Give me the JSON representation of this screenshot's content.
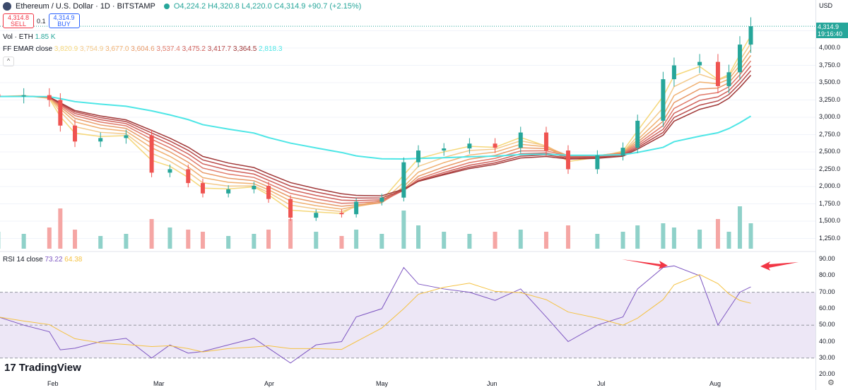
{
  "header": {
    "symbol": "Ethereum / U.S. Dollar · 1D · BITSTAMP",
    "open": "O4,224.2",
    "high": "H4,320.8",
    "low": "L4,220.0",
    "close": "C4,314.9",
    "change": "+90.7 (+2.15%)"
  },
  "trade": {
    "sell_price": "4,314.8",
    "sell_label": "SELL",
    "spread": "0.1",
    "buy_price": "4,314.9",
    "buy_label": "BUY"
  },
  "volume_legend": {
    "label": "Vol · ETH",
    "value": "1.85 K"
  },
  "ema_legend": {
    "label": "FF EMAR close",
    "values": [
      "3,820.9",
      "3,754.9",
      "3,677.0",
      "3,604.6",
      "3,537.4",
      "3,475.2",
      "3,417.7",
      "3,364.5",
      "2,818.3"
    ],
    "colors": [
      "#f5d77a",
      "#f3c98a",
      "#f0b070",
      "#e89a68",
      "#e07a6a",
      "#d0605a",
      "#b84a4a",
      "#a03838",
      "#4ee6e6"
    ]
  },
  "rsi_legend": {
    "label": "RSI 14 close",
    "value": "73.22",
    "ma": "64.38"
  },
  "axis": {
    "currency": "USD",
    "last_price": "4,314.9",
    "countdown": "19:16:40",
    "price_ticks": [
      "4,000.0",
      "3,750.0",
      "3,500.0",
      "3,250.0",
      "3,000.0",
      "2,750.0",
      "2,500.0",
      "2,250.0",
      "2,000.0",
      "1,750.0",
      "1,500.0",
      "1,250.0"
    ],
    "rsi_ticks": [
      "90.00",
      "80.00",
      "70.00",
      "60.00",
      "50.00",
      "40.00",
      "30.00",
      "20.00"
    ]
  },
  "brand": "TradingView",
  "colors": {
    "up": "#26a69a",
    "down": "#ef5350",
    "rsi": "#7e57c2",
    "rsi_ma": "#f5c242",
    "rsi_band": "#ede7f6",
    "arrow": "#f23645"
  },
  "chart_data": {
    "type": "candlestick",
    "x_ticks": [
      "Feb",
      "Mar",
      "Apr",
      "May",
      "Jun",
      "Jul",
      "Aug"
    ],
    "dates": [
      "2025-01-17",
      "2025-01-24",
      "2025-01-31",
      "2025-02-03",
      "2025-02-07",
      "2025-02-14",
      "2025-02-21",
      "2025-02-28",
      "2025-03-05",
      "2025-03-10",
      "2025-03-14",
      "2025-03-21",
      "2025-03-28",
      "2025-04-01",
      "2025-04-07",
      "2025-04-14",
      "2025-04-21",
      "2025-04-25",
      "2025-05-02",
      "2025-05-08",
      "2025-05-12",
      "2025-05-19",
      "2025-05-26",
      "2025-06-02",
      "2025-06-09",
      "2025-06-16",
      "2025-06-22",
      "2025-06-30",
      "2025-07-07",
      "2025-07-11",
      "2025-07-18",
      "2025-07-21",
      "2025-07-28",
      "2025-08-02",
      "2025-08-05",
      "2025-08-08",
      "2025-08-11"
    ],
    "close": [
      3300,
      3320,
      3250,
      2880,
      2650,
      2700,
      2740,
      2200,
      2250,
      2050,
      1900,
      1960,
      2010,
      1820,
      1550,
      1620,
      1600,
      1780,
      1840,
      2350,
      2520,
      2550,
      2620,
      2560,
      2780,
      2520,
      2250,
      2450,
      2560,
      2950,
      3550,
      3750,
      3800,
      3450,
      3650,
      4050,
      4314.9
    ],
    "volume": [
      40,
      35,
      50,
      95,
      45,
      30,
      35,
      70,
      50,
      45,
      40,
      30,
      35,
      45,
      70,
      40,
      30,
      45,
      35,
      90,
      55,
      40,
      35,
      40,
      45,
      40,
      55,
      35,
      40,
      55,
      60,
      50,
      45,
      70,
      40,
      100,
      60
    ],
    "rsi": [
      55,
      50,
      46,
      35,
      36,
      40,
      42,
      30,
      38,
      33,
      34,
      38,
      42,
      36,
      27,
      38,
      40,
      55,
      60,
      85,
      75,
      72,
      70,
      65,
      72,
      55,
      40,
      50,
      55,
      72,
      85,
      86,
      80,
      50,
      60,
      70,
      73.22
    ],
    "price_range": [
      1100,
      4400
    ],
    "rsi_range": [
      20,
      92
    ],
    "rsi_levels": [
      70,
      50,
      30
    ]
  }
}
